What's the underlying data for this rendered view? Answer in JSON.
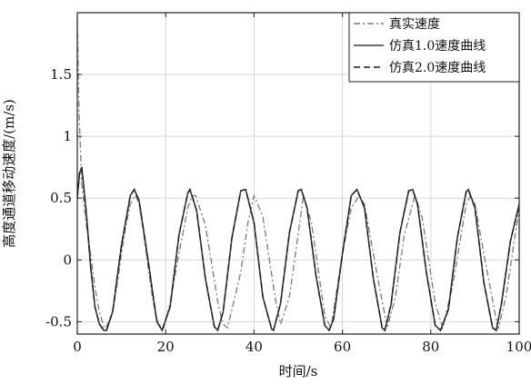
{
  "chart_data": {
    "type": "line",
    "title": "",
    "xlabel": "时间/s",
    "ylabel": "高度通道移动速度/(m/s)",
    "xlim": [
      0,
      100
    ],
    "ylim": [
      -0.6,
      2.0
    ],
    "x_ticks": [
      0,
      20,
      40,
      60,
      80,
      100
    ],
    "x_tick_labels": [
      "0",
      "20",
      "40",
      "60",
      "80",
      "100"
    ],
    "y_ticks": [
      -0.5,
      0,
      0.5,
      1,
      1.5
    ],
    "y_tick_labels": [
      "-0.5",
      "0",
      "0.5",
      "1",
      "1.5"
    ],
    "grid": true,
    "legend_position": "top-right",
    "series": [
      {
        "name": "真实速度",
        "line_style": "dash-dot",
        "color": "#7a7a7a",
        "x": [
          0,
          0.4,
          1,
          1.5,
          2,
          3,
          4,
          5,
          6,
          6.5,
          8,
          9,
          10,
          11,
          12,
          13,
          13.2,
          14,
          15,
          16,
          17,
          18,
          19,
          19.5,
          21,
          23,
          25,
          26,
          26.8,
          29,
          32,
          33,
          34,
          37,
          38.6,
          40,
          42,
          44,
          45,
          46,
          48,
          51.2,
          53,
          56,
          57.4,
          60,
          62,
          63.8,
          65,
          68,
          70,
          70.1,
          72,
          74,
          76.4,
          78,
          81,
          82.7,
          85,
          88,
          89,
          90,
          92,
          95,
          95.3,
          97,
          100
        ],
        "y": [
          1.95,
          1.2,
          0.62,
          0.45,
          0.3,
          0.05,
          -0.22,
          -0.42,
          -0.54,
          -0.55,
          -0.42,
          -0.2,
          0.05,
          0.28,
          0.45,
          0.52,
          0.52,
          0.45,
          0.22,
          -0.05,
          -0.3,
          -0.48,
          -0.55,
          -0.55,
          -0.35,
          0.05,
          0.42,
          0.52,
          0.52,
          0.28,
          -0.38,
          -0.52,
          -0.55,
          -0.1,
          0.3,
          0.52,
          0.35,
          -0.12,
          -0.35,
          -0.52,
          -0.3,
          0.52,
          0.3,
          -0.45,
          -0.55,
          0.05,
          0.42,
          0.52,
          0.45,
          -0.15,
          -0.52,
          -0.55,
          -0.3,
          0.2,
          0.52,
          0.35,
          -0.35,
          -0.55,
          -0.2,
          0.45,
          0.52,
          0.45,
          0.05,
          -0.52,
          -0.55,
          -0.3,
          0.42
        ]
      },
      {
        "name": "仿真1.0速度曲线",
        "line_style": "solid",
        "color": "#3a3a3a",
        "x": [
          0,
          0.5,
          1,
          2,
          3,
          4,
          5,
          6,
          6.6,
          8,
          10,
          12,
          12.9,
          14,
          16,
          18,
          19.2,
          21,
          23,
          25,
          25.5,
          27,
          29,
          31,
          31.8,
          33,
          35,
          37,
          38.1,
          40,
          42,
          44,
          44.4,
          46,
          48,
          50,
          50.7,
          52,
          54,
          56,
          57,
          58,
          60,
          62,
          63.3,
          65,
          67,
          69,
          69.6,
          71,
          73,
          75,
          75.9,
          77,
          79,
          81,
          82.2,
          84,
          86,
          88,
          88.5,
          90,
          92,
          94,
          94.8,
          96,
          98,
          100
        ],
        "y": [
          0.5,
          0.7,
          0.75,
          0.4,
          -0.05,
          -0.38,
          -0.52,
          -0.57,
          -0.57,
          -0.42,
          0.12,
          0.52,
          0.57,
          0.48,
          0.0,
          -0.5,
          -0.57,
          -0.38,
          0.2,
          0.54,
          0.57,
          0.4,
          -0.15,
          -0.54,
          -0.57,
          -0.42,
          0.18,
          0.56,
          0.57,
          0.3,
          -0.3,
          -0.56,
          -0.57,
          -0.35,
          0.22,
          0.56,
          0.57,
          0.42,
          -0.12,
          -0.53,
          -0.57,
          -0.48,
          0.05,
          0.52,
          0.57,
          0.42,
          -0.15,
          -0.55,
          -0.57,
          -0.36,
          0.22,
          0.56,
          0.57,
          0.45,
          -0.1,
          -0.53,
          -0.57,
          -0.4,
          0.18,
          0.55,
          0.57,
          0.42,
          -0.18,
          -0.55,
          -0.57,
          -0.35,
          0.15,
          0.45
        ]
      },
      {
        "name": "仿真2.0速度曲线",
        "line_style": "dashed",
        "color": "#1a1a1a",
        "x": [
          0,
          0.5,
          1,
          2,
          3,
          4,
          5,
          6,
          6.6,
          8,
          10,
          12,
          12.9,
          14,
          16,
          18,
          19.2,
          21,
          23,
          25,
          25.5,
          27,
          29,
          31,
          31.8,
          33,
          35,
          37,
          38.1,
          40,
          42,
          44,
          44.4,
          46,
          48,
          50,
          50.7,
          52,
          54,
          56,
          57,
          58,
          60,
          62,
          63.3,
          65,
          67,
          69,
          69.6,
          71,
          73,
          75,
          75.9,
          77,
          79,
          81,
          82.2,
          84,
          86,
          88,
          88.5,
          90,
          92,
          94,
          94.8,
          96,
          98,
          100
        ],
        "y": [
          0.5,
          0.7,
          0.75,
          0.4,
          -0.05,
          -0.38,
          -0.52,
          -0.57,
          -0.57,
          -0.42,
          0.12,
          0.52,
          0.57,
          0.48,
          0.0,
          -0.5,
          -0.57,
          -0.38,
          0.2,
          0.54,
          0.57,
          0.4,
          -0.15,
          -0.54,
          -0.57,
          -0.42,
          0.18,
          0.56,
          0.57,
          0.3,
          -0.3,
          -0.56,
          -0.57,
          -0.35,
          0.22,
          0.56,
          0.57,
          0.42,
          -0.12,
          -0.53,
          -0.57,
          -0.48,
          0.05,
          0.52,
          0.57,
          0.42,
          -0.15,
          -0.55,
          -0.57,
          -0.36,
          0.22,
          0.56,
          0.57,
          0.45,
          -0.1,
          -0.53,
          -0.57,
          -0.4,
          0.18,
          0.55,
          0.57,
          0.42,
          -0.18,
          -0.55,
          -0.57,
          -0.35,
          0.15,
          0.45
        ]
      }
    ]
  }
}
